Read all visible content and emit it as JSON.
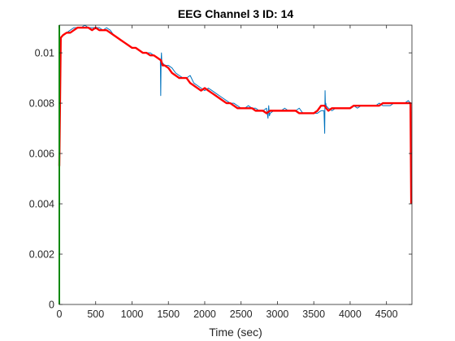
{
  "chart_data": {
    "type": "line",
    "title": "EEG Channel 3 ID: 14",
    "xlabel": "Time (sec)",
    "ylabel": "",
    "xlim": [
      0,
      4850
    ],
    "ylim": [
      0,
      0.0111
    ],
    "xticks": [
      0,
      500,
      1000,
      1500,
      2000,
      2500,
      3000,
      3500,
      4000,
      4500
    ],
    "xtick_labels": [
      "0",
      "500",
      "1000",
      "1500",
      "2000",
      "2500",
      "3000",
      "3500",
      "4000",
      "4500"
    ],
    "yticks": [
      0,
      0.002,
      0.004,
      0.006,
      0.008,
      0.01
    ],
    "ytick_labels": [
      "0",
      "0.002",
      "0.004",
      "0.006",
      "0.008",
      "0.01"
    ],
    "grid": false,
    "legend": "none",
    "series": [
      {
        "color": "#0072BD",
        "width": 1,
        "x": [
          0,
          20,
          50,
          100,
          150,
          200,
          250,
          300,
          350,
          400,
          450,
          500,
          550,
          600,
          650,
          700,
          750,
          800,
          850,
          900,
          950,
          1000,
          1050,
          1100,
          1150,
          1200,
          1250,
          1300,
          1350,
          1390,
          1395,
          1400,
          1405,
          1410,
          1415,
          1420,
          1450,
          1500,
          1550,
          1600,
          1650,
          1700,
          1750,
          1800,
          1850,
          1900,
          1950,
          2000,
          2050,
          2100,
          2150,
          2200,
          2250,
          2300,
          2350,
          2400,
          2450,
          2500,
          2550,
          2600,
          2650,
          2700,
          2750,
          2800,
          2850,
          2870,
          2880,
          2890,
          2900,
          2950,
          3000,
          3050,
          3100,
          3150,
          3200,
          3250,
          3300,
          3350,
          3400,
          3450,
          3500,
          3550,
          3600,
          3640,
          3650,
          3655,
          3660,
          3665,
          3670,
          3700,
          3750,
          3800,
          3850,
          3900,
          3950,
          4000,
          4050,
          4100,
          4150,
          4200,
          4250,
          4300,
          4350,
          4400,
          4450,
          4500,
          4550,
          4600,
          4650,
          4700,
          4750,
          4800,
          4830,
          4840
        ],
        "y": [
          0.0056,
          0.0106,
          0.0107,
          0.0108,
          0.0109,
          0.011,
          0.011,
          0.011,
          0.0111,
          0.011,
          0.011,
          0.011,
          0.011,
          0.0109,
          0.011,
          0.0109,
          0.0107,
          0.0106,
          0.0105,
          0.0104,
          0.0103,
          0.0102,
          0.0102,
          0.0101,
          0.01,
          0.01,
          0.01,
          0.0099,
          0.0098,
          0.0097,
          0.0083,
          0.0097,
          0.01,
          0.0096,
          0.0095,
          0.0096,
          0.0095,
          0.0095,
          0.0094,
          0.0092,
          0.0091,
          0.009,
          0.009,
          0.0091,
          0.0088,
          0.0087,
          0.0086,
          0.0085,
          0.0086,
          0.0085,
          0.0084,
          0.0083,
          0.0082,
          0.0081,
          0.008,
          0.008,
          0.0079,
          0.0078,
          0.0078,
          0.0079,
          0.0078,
          0.0078,
          0.0077,
          0.0077,
          0.0078,
          0.0074,
          0.0079,
          0.0075,
          0.0076,
          0.0077,
          0.0077,
          0.0077,
          0.0078,
          0.0077,
          0.0077,
          0.0077,
          0.0078,
          0.0076,
          0.0076,
          0.0076,
          0.0076,
          0.0076,
          0.0077,
          0.0077,
          0.0068,
          0.0085,
          0.0079,
          0.008,
          0.0079,
          0.0078,
          0.0077,
          0.0078,
          0.0078,
          0.0078,
          0.0078,
          0.0078,
          0.0079,
          0.0078,
          0.0079,
          0.0079,
          0.0079,
          0.0079,
          0.0079,
          0.008,
          0.0079,
          0.0079,
          0.0079,
          0.008,
          0.008,
          0.008,
          0.008,
          0.0081,
          0.008,
          0.0041
        ]
      },
      {
        "color": "#FF0000",
        "width": 2.4,
        "x": [
          0,
          20,
          50,
          100,
          150,
          200,
          250,
          300,
          350,
          400,
          450,
          500,
          550,
          600,
          650,
          700,
          750,
          800,
          850,
          900,
          950,
          1000,
          1050,
          1100,
          1150,
          1200,
          1250,
          1300,
          1350,
          1400,
          1420,
          1450,
          1500,
          1550,
          1600,
          1650,
          1700,
          1750,
          1800,
          1850,
          1900,
          1950,
          2000,
          2050,
          2100,
          2150,
          2200,
          2250,
          2300,
          2350,
          2400,
          2450,
          2500,
          2550,
          2600,
          2650,
          2700,
          2750,
          2800,
          2850,
          2900,
          2950,
          3000,
          3050,
          3100,
          3150,
          3200,
          3250,
          3300,
          3350,
          3400,
          3450,
          3500,
          3550,
          3600,
          3650,
          3670,
          3700,
          3750,
          3800,
          3850,
          3900,
          3950,
          4000,
          4050,
          4100,
          4150,
          4200,
          4250,
          4300,
          4350,
          4400,
          4450,
          4500,
          4550,
          4600,
          4650,
          4700,
          4750,
          4800,
          4830,
          4840
        ],
        "y": [
          0.0055,
          0.0106,
          0.0107,
          0.0108,
          0.0108,
          0.0109,
          0.011,
          0.011,
          0.011,
          0.011,
          0.0109,
          0.011,
          0.0109,
          0.0109,
          0.0109,
          0.0108,
          0.0107,
          0.0106,
          0.0105,
          0.0104,
          0.0103,
          0.0102,
          0.0102,
          0.0101,
          0.01,
          0.01,
          0.0099,
          0.0099,
          0.0098,
          0.0097,
          0.0095,
          0.0095,
          0.0094,
          0.0092,
          0.0091,
          0.009,
          0.009,
          0.009,
          0.0088,
          0.0087,
          0.0086,
          0.0085,
          0.0086,
          0.0085,
          0.0084,
          0.0083,
          0.0082,
          0.0081,
          0.008,
          0.008,
          0.0079,
          0.0078,
          0.0078,
          0.0078,
          0.0078,
          0.0078,
          0.0077,
          0.0077,
          0.0077,
          0.0076,
          0.0077,
          0.0077,
          0.0077,
          0.0077,
          0.0077,
          0.0077,
          0.0077,
          0.0077,
          0.0076,
          0.0076,
          0.0076,
          0.0076,
          0.0076,
          0.0077,
          0.0079,
          0.0079,
          0.0078,
          0.0077,
          0.0078,
          0.0078,
          0.0078,
          0.0078,
          0.0078,
          0.0078,
          0.0079,
          0.0079,
          0.0079,
          0.0079,
          0.0079,
          0.0079,
          0.0079,
          0.0079,
          0.008,
          0.008,
          0.008,
          0.008,
          0.008,
          0.008,
          0.008,
          0.008,
          0.008,
          0.004
        ]
      },
      {
        "color": "#00CC00",
        "width": 2,
        "x": [
          0,
          0
        ],
        "y": [
          0,
          0.0111
        ]
      }
    ]
  }
}
